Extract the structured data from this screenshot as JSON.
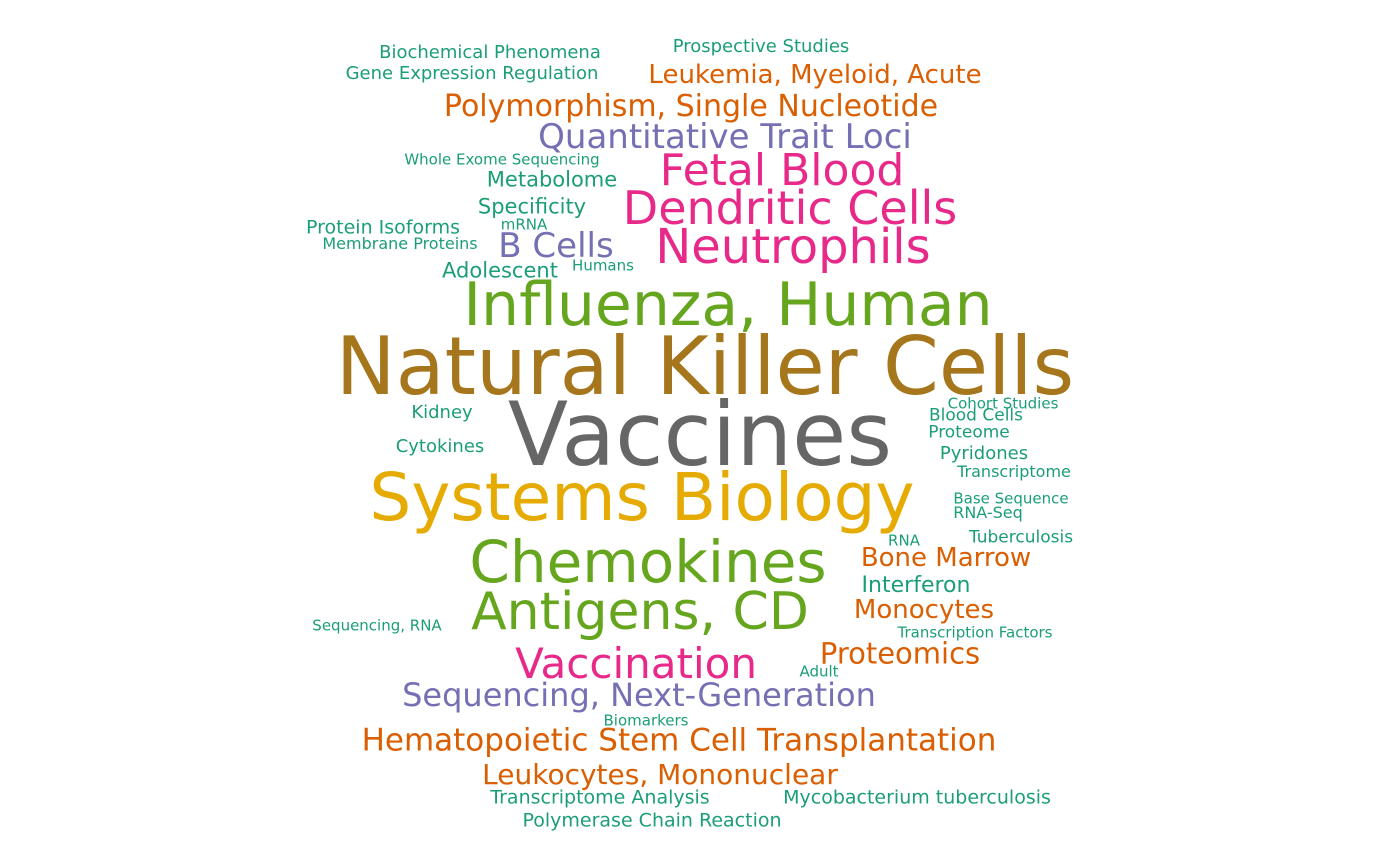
{
  "palette": {
    "teal": "#1b9e77",
    "orange": "#d95f02",
    "purple": "#7570b3",
    "magenta": "#e7298a",
    "green": "#66a61e",
    "gold": "#e6ab02",
    "brown": "#a6761d",
    "gray": "#666666"
  },
  "words": [
    {
      "text": "Vaccines",
      "color": "gray"
    },
    {
      "text": "Natural Killer Cells",
      "color": "brown"
    },
    {
      "text": "Systems Biology",
      "color": "gold"
    },
    {
      "text": "Influenza, Human",
      "color": "green"
    },
    {
      "text": "Chemokines",
      "color": "green"
    },
    {
      "text": "Antigens, CD",
      "color": "green"
    },
    {
      "text": "Neutrophils",
      "color": "magenta"
    },
    {
      "text": "Dendritic Cells",
      "color": "magenta"
    },
    {
      "text": "Fetal Blood",
      "color": "magenta"
    },
    {
      "text": "Vaccination",
      "color": "magenta"
    },
    {
      "text": "Quantitative Trait Loci",
      "color": "purple"
    },
    {
      "text": "B Cells",
      "color": "purple"
    },
    {
      "text": "Sequencing, Next-Generation",
      "color": "purple"
    },
    {
      "text": "Polymorphism, Single Nucleotide",
      "color": "orange"
    },
    {
      "text": "Leukemia, Myeloid, Acute",
      "color": "orange"
    },
    {
      "text": "Hematopoietic Stem Cell Transplantation",
      "color": "orange"
    },
    {
      "text": "Leukocytes, Mononuclear",
      "color": "orange"
    },
    {
      "text": "Proteomics",
      "color": "orange"
    },
    {
      "text": "Bone Marrow",
      "color": "orange"
    },
    {
      "text": "Monocytes",
      "color": "orange"
    },
    {
      "text": "Prospective Studies",
      "color": "teal"
    },
    {
      "text": "Biochemical Phenomena",
      "color": "teal"
    },
    {
      "text": "Gene Expression Regulation",
      "color": "teal"
    },
    {
      "text": "Whole Exome Sequencing",
      "color": "teal"
    },
    {
      "text": "Metabolome",
      "color": "teal"
    },
    {
      "text": "Specificity",
      "color": "teal"
    },
    {
      "text": "mRNA",
      "color": "teal"
    },
    {
      "text": "Protein Isoforms",
      "color": "teal"
    },
    {
      "text": "Membrane Proteins",
      "color": "teal"
    },
    {
      "text": "Adolescent",
      "color": "teal"
    },
    {
      "text": "Humans",
      "color": "teal"
    },
    {
      "text": "Kidney",
      "color": "teal"
    },
    {
      "text": "Cytokines",
      "color": "teal"
    },
    {
      "text": "Cohort Studies",
      "color": "teal"
    },
    {
      "text": "Blood Cells",
      "color": "teal"
    },
    {
      "text": "Proteome",
      "color": "teal"
    },
    {
      "text": "Pyridones",
      "color": "teal"
    },
    {
      "text": "Transcriptome",
      "color": "teal"
    },
    {
      "text": "Base Sequence",
      "color": "teal"
    },
    {
      "text": "RNA-Seq",
      "color": "teal"
    },
    {
      "text": "Tuberculosis",
      "color": "teal"
    },
    {
      "text": "RNA",
      "color": "teal"
    },
    {
      "text": "Interferon",
      "color": "teal"
    },
    {
      "text": "Sequencing, RNA",
      "color": "teal"
    },
    {
      "text": "Transcription Factors",
      "color": "teal"
    },
    {
      "text": "Adult",
      "color": "teal"
    },
    {
      "text": "Biomarkers",
      "color": "teal"
    },
    {
      "text": "Transcriptome Analysis",
      "color": "teal"
    },
    {
      "text": "Mycobacterium tuberculosis",
      "color": "teal"
    },
    {
      "text": "Polymerase Chain Reaction",
      "color": "teal"
    }
  ]
}
